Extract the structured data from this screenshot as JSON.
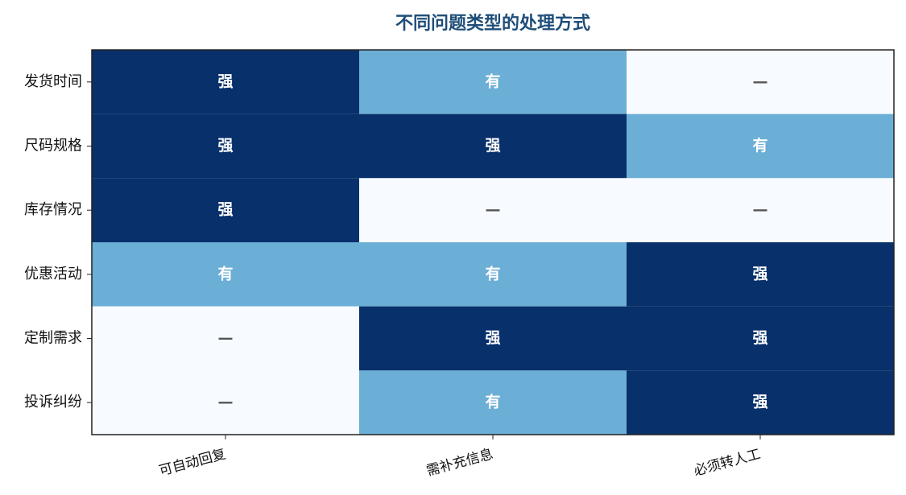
{
  "chart_data": {
    "type": "heatmap",
    "title": "不同问题类型的处理方式",
    "rows": [
      "发货时间",
      "尺码规格",
      "库存情况",
      "优惠活动",
      "定制需求",
      "投诉纠纷"
    ],
    "columns": [
      "可自动回复",
      "需补充信息",
      "必须转人工"
    ],
    "cells": [
      [
        {
          "label": "强",
          "color": "#08306b",
          "text_color": "#ffffff"
        },
        {
          "label": "有",
          "color": "#6baed6",
          "text_color": "#ffffff"
        },
        {
          "label": "—",
          "color": "#f7fbff",
          "text_color": "#555555"
        }
      ],
      [
        {
          "label": "强",
          "color": "#08306b",
          "text_color": "#ffffff"
        },
        {
          "label": "强",
          "color": "#08306b",
          "text_color": "#ffffff"
        },
        {
          "label": "有",
          "color": "#6baed6",
          "text_color": "#ffffff"
        }
      ],
      [
        {
          "label": "强",
          "color": "#08306b",
          "text_color": "#ffffff"
        },
        {
          "label": "—",
          "color": "#f7fbff",
          "text_color": "#555555"
        },
        {
          "label": "—",
          "color": "#f7fbff",
          "text_color": "#555555"
        }
      ],
      [
        {
          "label": "有",
          "color": "#6baed6",
          "text_color": "#ffffff"
        },
        {
          "label": "有",
          "color": "#6baed6",
          "text_color": "#ffffff"
        },
        {
          "label": "强",
          "color": "#08306b",
          "text_color": "#ffffff"
        }
      ],
      [
        {
          "label": "—",
          "color": "#f7fbff",
          "text_color": "#555555"
        },
        {
          "label": "强",
          "color": "#08306b",
          "text_color": "#ffffff"
        },
        {
          "label": "强",
          "color": "#08306b",
          "text_color": "#ffffff"
        }
      ],
      [
        {
          "label": "—",
          "color": "#f7fbff",
          "text_color": "#555555"
        },
        {
          "label": "有",
          "color": "#6baed6",
          "text_color": "#ffffff"
        },
        {
          "label": "强",
          "color": "#08306b",
          "text_color": "#ffffff"
        }
      ]
    ]
  }
}
